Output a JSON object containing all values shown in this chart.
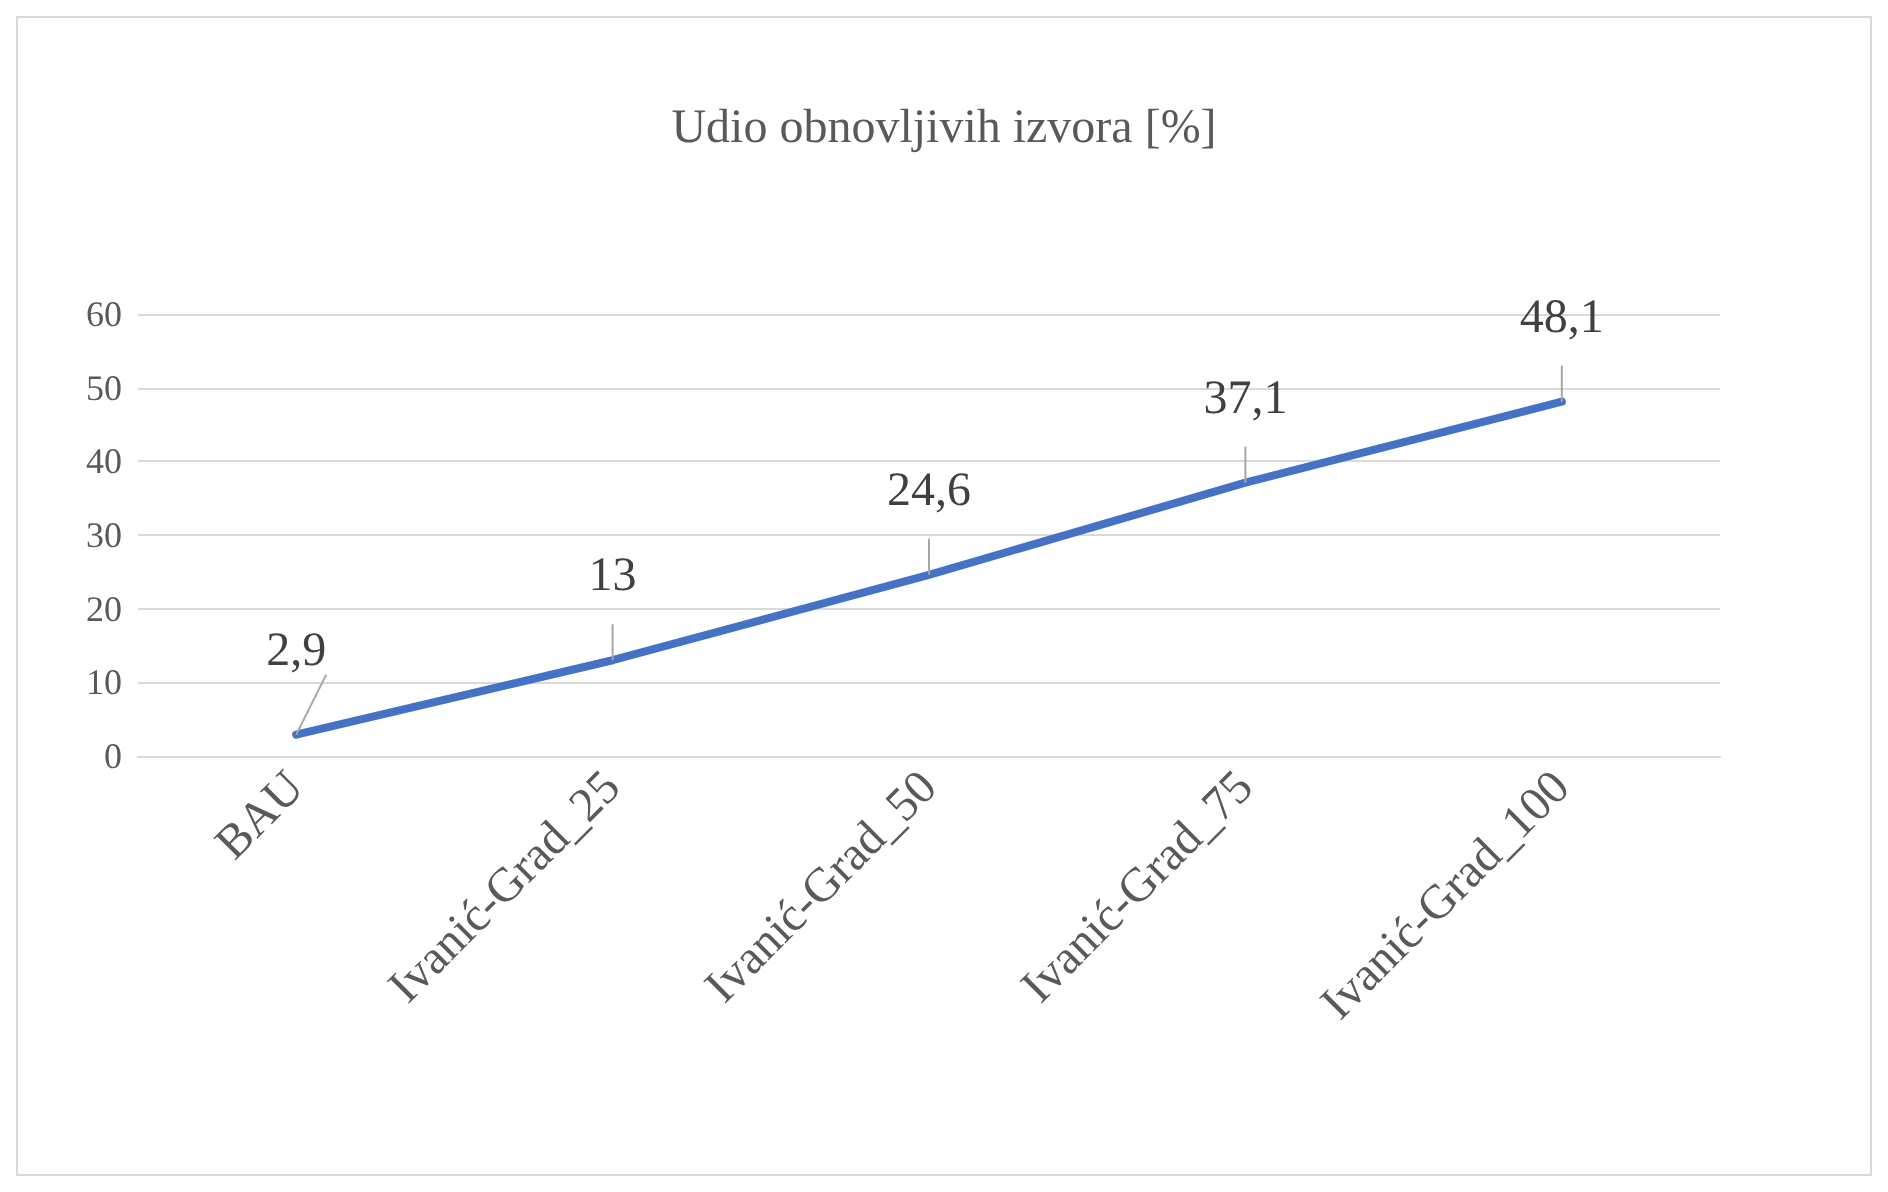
{
  "chart_data": {
    "type": "line",
    "title": "Udio obnovljivih izvora [%]",
    "categories": [
      "BAU",
      "Ivanić-Grad_25",
      "Ivanić-Grad_50",
      "Ivanić-Grad_75",
      "Ivanić-Grad_100"
    ],
    "values": [
      2.9,
      13,
      24.6,
      37.1,
      48.1
    ],
    "value_labels": [
      "2,9",
      "13",
      "24,6",
      "37,1",
      "48,1"
    ],
    "color": "#4472c4",
    "ylim": [
      0,
      60
    ],
    "yticks": [
      0,
      10,
      20,
      30,
      40,
      50,
      60
    ],
    "grid": "y",
    "marker": "none",
    "line_style": "solid"
  }
}
